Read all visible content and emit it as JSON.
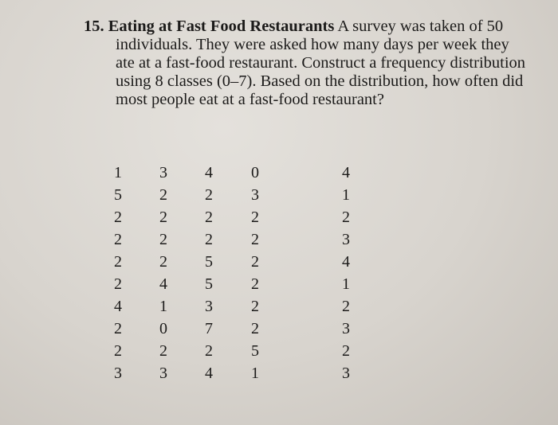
{
  "problem": {
    "number": "15.",
    "heading": "Eating at Fast Food Restaurants",
    "text": "A survey was taken of 50 individuals. They were asked how many days per week they ate at a fast-food restaurant. Construct a frequency distribution using 8 classes (0–7). Based on the distribution, how often did most people eat at a fast-food restaurant?"
  },
  "table": {
    "rows": [
      [
        1,
        3,
        4,
        0,
        4
      ],
      [
        5,
        2,
        2,
        3,
        1
      ],
      [
        2,
        2,
        2,
        2,
        2
      ],
      [
        2,
        2,
        2,
        2,
        3
      ],
      [
        2,
        2,
        5,
        2,
        4
      ],
      [
        2,
        4,
        5,
        2,
        1
      ],
      [
        4,
        1,
        3,
        2,
        2
      ],
      [
        2,
        0,
        7,
        2,
        3
      ],
      [
        2,
        2,
        2,
        5,
        2
      ],
      [
        3,
        3,
        4,
        1,
        3
      ]
    ]
  }
}
